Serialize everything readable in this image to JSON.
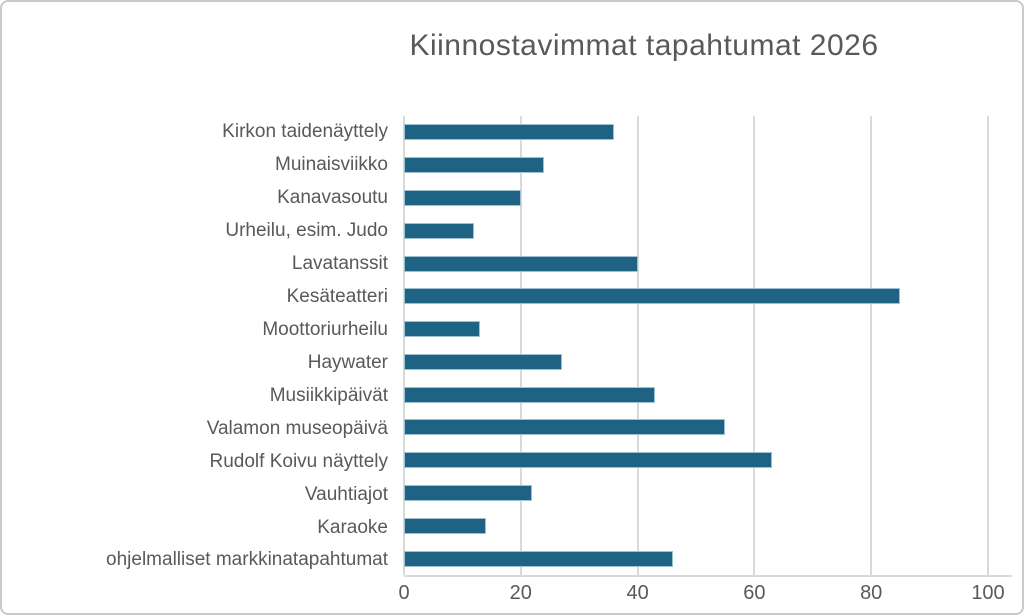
{
  "frame": {
    "background": "#ffffff",
    "border_color": "#c9c9c9"
  },
  "chart_data": {
    "type": "bar",
    "orientation": "horizontal",
    "title": "Kiinnostavimmat tapahtumat 2026",
    "categories": [
      "Kirkon taidenäyttely",
      "Muinaisviikko",
      "Kanavasoutu",
      "Urheilu, esim. Judo",
      "Lavatanssit",
      "Kesäteatteri",
      "Moottoriurheilu",
      "Haywater",
      "Musiikkipäivät",
      "Valamon museopäivä",
      "Rudolf Koivu näyttely",
      "Vauhtiajot",
      "Karaoke",
      "ohjelmalliset markkinatapahtumat"
    ],
    "values": [
      36,
      24,
      20,
      12,
      40,
      85,
      13,
      27,
      43,
      55,
      63,
      22,
      14,
      46
    ],
    "xlabel": "",
    "ylabel": "",
    "xlim": [
      0,
      100
    ],
    "x_ticks": [
      0,
      20,
      40,
      60,
      80,
      100
    ],
    "grid": true,
    "legend": "none",
    "bar_color": "#1e6384",
    "bar_border_color": "#9fc0cf",
    "gridline_color": "#d9d9d9",
    "text_color": "#595959"
  }
}
